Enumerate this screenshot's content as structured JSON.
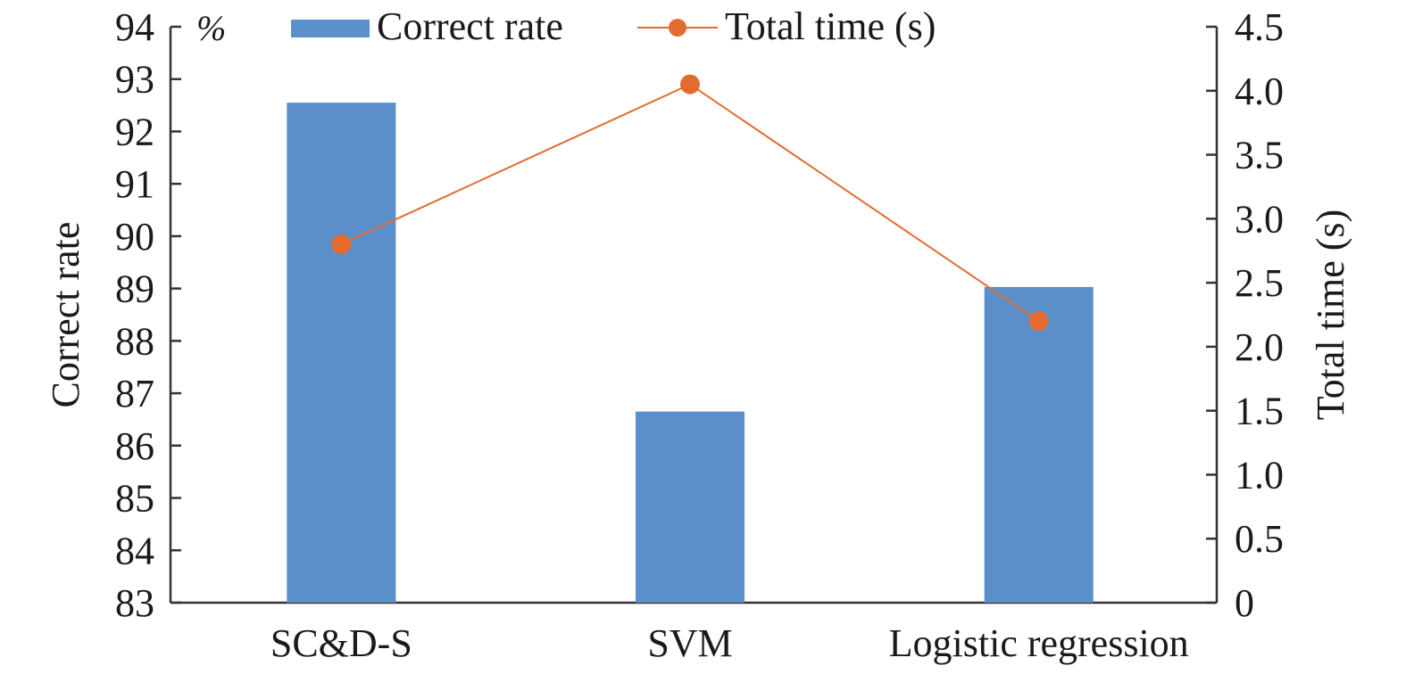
{
  "chart_data": {
    "type": "bar",
    "categories": [
      "SC&D-S",
      "SVM",
      "Logistic regression"
    ],
    "series": [
      {
        "name": "Correct rate",
        "type": "bar",
        "axis": "left",
        "values": [
          92.55,
          86.65,
          89.03
        ],
        "color": "#5b8fca"
      },
      {
        "name": "Total time (s)",
        "type": "line",
        "axis": "right",
        "values": [
          2.8,
          4.05,
          2.2
        ],
        "color": "#e46b2f"
      }
    ],
    "ylabel": "Correct rate",
    "ylabel_right": "Total time (s)",
    "y_unit": "%",
    "ylim": [
      83,
      94
    ],
    "ylim_right": [
      0,
      4.5
    ],
    "yticks": [
      "83",
      "84",
      "85",
      "86",
      "87",
      "88",
      "89",
      "90",
      "91",
      "92",
      "93",
      "94"
    ],
    "yticks_right": [
      "0",
      "0.5",
      "1.0",
      "1.5",
      "2.0",
      "2.5",
      "3.0",
      "3.5",
      "4.0",
      "4.5"
    ],
    "legend": {
      "position": "top",
      "entries": [
        "Correct rate",
        "Total time (s)"
      ]
    },
    "grid": false
  }
}
